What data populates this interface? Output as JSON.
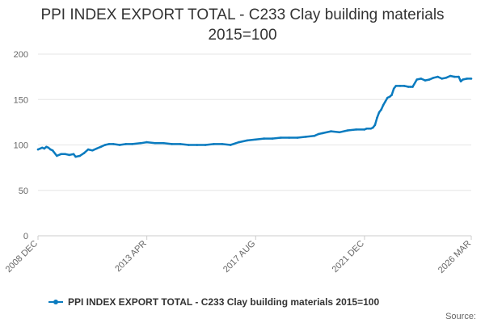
{
  "chart_data": {
    "type": "line",
    "title_line1": "PPI INDEX EXPORT TOTAL - C233 Clay building materials",
    "title_line2": "2015=100",
    "xlabel": "",
    "ylabel": "",
    "ylim": [
      0,
      200
    ],
    "yticks": [
      0,
      50,
      100,
      150,
      200
    ],
    "xticks": [
      "2008 DEC",
      "2013 APR",
      "2017 AUG",
      "2021 DEC",
      "2026 MAR"
    ],
    "grid": true,
    "legend_position": "bottom",
    "source": "Source:",
    "colors": {
      "series": "#0a7bbf",
      "grid": "#e6e6e6",
      "axis": "#cccccc"
    },
    "series": [
      {
        "name": "PPI INDEX EXPORT TOTAL - C233 Clay building materials 2015=100",
        "x": [
          "2008-12",
          "2009-01",
          "2009-02",
          "2009-03",
          "2009-04",
          "2009-05",
          "2009-06",
          "2009-07",
          "2009-09",
          "2009-11",
          "2010-01",
          "2010-03",
          "2010-05",
          "2010-06",
          "2010-08",
          "2010-10",
          "2010-12",
          "2011-02",
          "2011-04",
          "2011-06",
          "2011-08",
          "2011-10",
          "2011-12",
          "2012-03",
          "2012-06",
          "2012-09",
          "2013-01",
          "2013-04",
          "2013-08",
          "2013-12",
          "2014-04",
          "2014-08",
          "2014-12",
          "2015-04",
          "2015-08",
          "2015-12",
          "2016-04",
          "2016-08",
          "2016-12",
          "2017-04",
          "2017-08",
          "2017-12",
          "2018-04",
          "2018-08",
          "2018-12",
          "2019-04",
          "2019-08",
          "2019-12",
          "2020-02",
          "2020-04",
          "2020-08",
          "2020-12",
          "2021-04",
          "2021-08",
          "2021-12",
          "2022-01",
          "2022-02",
          "2022-03",
          "2022-04",
          "2022-05",
          "2022-06",
          "2022-07",
          "2022-08",
          "2022-09",
          "2022-10",
          "2022-11",
          "2022-12",
          "2023-01",
          "2023-02",
          "2023-03",
          "2023-05",
          "2023-07",
          "2023-09",
          "2023-10",
          "2023-11",
          "2024-01",
          "2024-03",
          "2024-05",
          "2024-07",
          "2024-09",
          "2024-11",
          "2025-01",
          "2025-03",
          "2025-05",
          "2025-07",
          "2025-09",
          "2025-10",
          "2025-11",
          "2026-01",
          "2026-03"
        ],
        "values": [
          95,
          96,
          97,
          96,
          98,
          97,
          95,
          94,
          88,
          90,
          90,
          89,
          90,
          87,
          88,
          91,
          95,
          94,
          96,
          98,
          100,
          101,
          101,
          100,
          101,
          101,
          102,
          103,
          102,
          102,
          101,
          101,
          100,
          100,
          100,
          101,
          101,
          100,
          103,
          105,
          106,
          107,
          107,
          108,
          108,
          108,
          109,
          110,
          112,
          113,
          115,
          114,
          116,
          117,
          117,
          118,
          118,
          118,
          119,
          122,
          130,
          136,
          139,
          144,
          148,
          152,
          153,
          155,
          162,
          165,
          165,
          165,
          164,
          164,
          164,
          172,
          173,
          171,
          172,
          174,
          175,
          173,
          174,
          176,
          175,
          175,
          170,
          172,
          173,
          173
        ]
      }
    ]
  }
}
